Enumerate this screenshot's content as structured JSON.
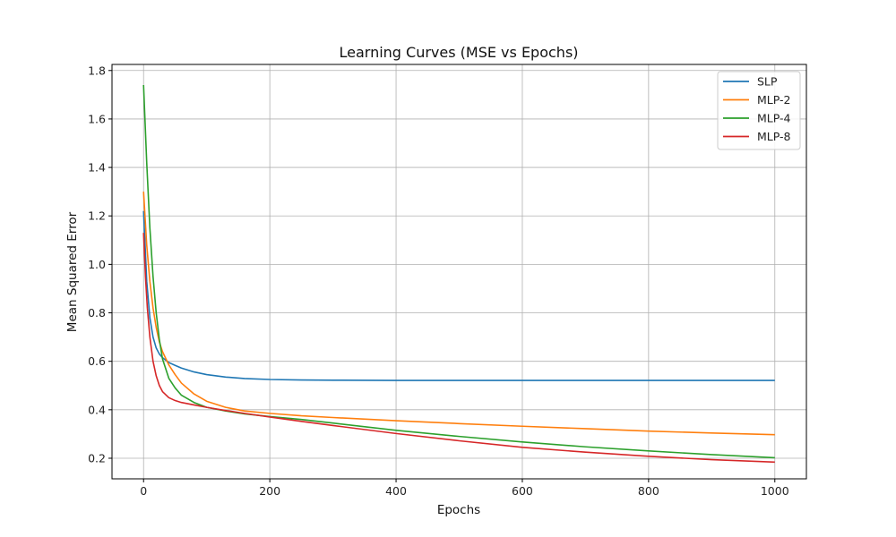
{
  "chart_data": {
    "type": "line",
    "title": "Learning Curves (MSE vs Epochs)",
    "xlabel": "Epochs",
    "ylabel": "Mean Squared Error",
    "xlim": [
      -50,
      1050
    ],
    "ylim": [
      0.115,
      1.825
    ],
    "xticks": [
      0,
      200,
      400,
      600,
      800,
      1000
    ],
    "yticks": [
      0.2,
      0.4,
      0.6,
      0.8,
      1.0,
      1.2,
      1.4,
      1.6,
      1.8
    ],
    "grid": true,
    "legend_position": "top-right",
    "series": [
      {
        "name": "SLP",
        "color": "#1f77b4",
        "x": [
          0,
          5,
          10,
          15,
          20,
          25,
          30,
          40,
          50,
          60,
          80,
          100,
          130,
          160,
          200,
          250,
          300,
          400,
          500,
          600,
          700,
          800,
          900,
          1000
        ],
        "y": [
          1.22,
          0.93,
          0.78,
          0.7,
          0.655,
          0.63,
          0.615,
          0.595,
          0.583,
          0.572,
          0.556,
          0.545,
          0.535,
          0.529,
          0.525,
          0.523,
          0.522,
          0.521,
          0.521,
          0.521,
          0.521,
          0.521,
          0.521,
          0.521
        ]
      },
      {
        "name": "MLP-2",
        "color": "#ff7f0e",
        "x": [
          0,
          5,
          10,
          15,
          20,
          25,
          30,
          40,
          50,
          60,
          80,
          100,
          130,
          160,
          200,
          250,
          300,
          400,
          500,
          600,
          700,
          800,
          900,
          1000
        ],
        "y": [
          1.3,
          1.08,
          0.93,
          0.82,
          0.74,
          0.68,
          0.64,
          0.585,
          0.545,
          0.51,
          0.465,
          0.435,
          0.41,
          0.395,
          0.385,
          0.375,
          0.368,
          0.355,
          0.343,
          0.332,
          0.322,
          0.312,
          0.304,
          0.297
        ]
      },
      {
        "name": "MLP-4",
        "color": "#2ca02c",
        "x": [
          0,
          5,
          10,
          15,
          20,
          25,
          30,
          40,
          50,
          60,
          80,
          100,
          130,
          160,
          200,
          250,
          300,
          400,
          500,
          600,
          700,
          800,
          900,
          1000
        ],
        "y": [
          1.74,
          1.42,
          1.15,
          0.95,
          0.8,
          0.69,
          0.61,
          0.53,
          0.49,
          0.46,
          0.43,
          0.41,
          0.395,
          0.383,
          0.372,
          0.36,
          0.345,
          0.315,
          0.29,
          0.267,
          0.247,
          0.23,
          0.215,
          0.202
        ]
      },
      {
        "name": "MLP-8",
        "color": "#d62728",
        "x": [
          0,
          3,
          6,
          10,
          15,
          20,
          25,
          30,
          40,
          50,
          60,
          80,
          100,
          130,
          160,
          200,
          250,
          300,
          400,
          500,
          600,
          700,
          800,
          900,
          1000
        ],
        "y": [
          1.13,
          0.95,
          0.82,
          0.7,
          0.6,
          0.54,
          0.5,
          0.475,
          0.45,
          0.438,
          0.43,
          0.42,
          0.41,
          0.397,
          0.385,
          0.37,
          0.352,
          0.335,
          0.302,
          0.272,
          0.245,
          0.225,
          0.208,
          0.194,
          0.184
        ]
      }
    ]
  }
}
